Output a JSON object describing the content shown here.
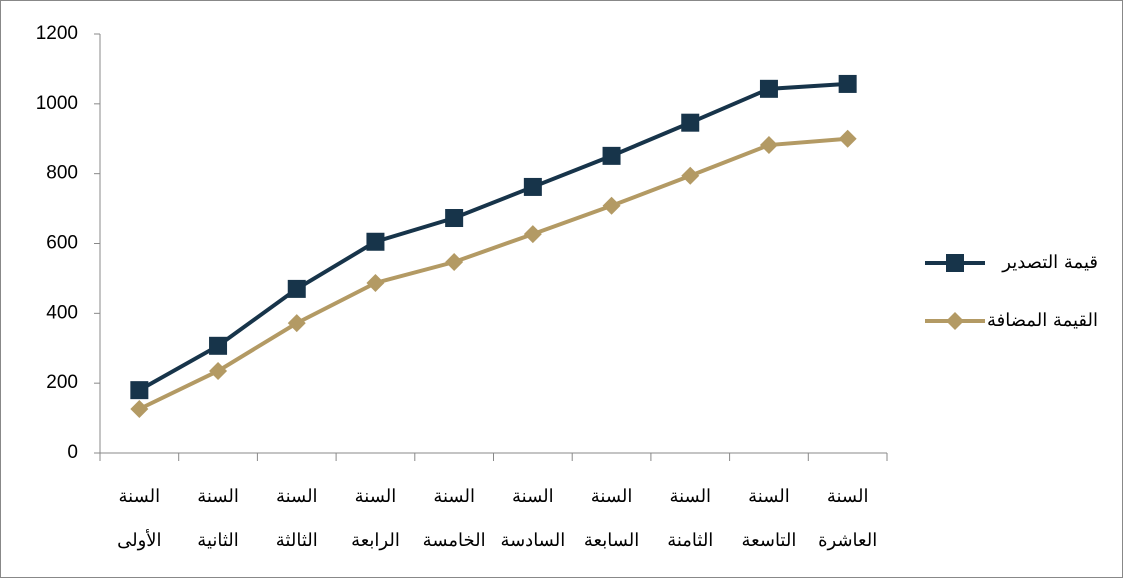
{
  "chart_data": {
    "type": "line",
    "categories": [
      "السنة الأولى",
      "السنة الثانية",
      "السنة الثالثة",
      "السنة الرابعة",
      "السنة الخامسة",
      "السنة السادسة",
      "السنة السابعة",
      "السنة الثامنة",
      "السنة التاسعة",
      "السنة العاشرة"
    ],
    "series": [
      {
        "name": "قيمة التصدير",
        "color": "#17344a",
        "marker": "square",
        "values": [
          180,
          307,
          470,
          605,
          673,
          762,
          851,
          946,
          1043,
          1057
        ]
      },
      {
        "name": "القيمة المضافة",
        "color": "#b39a64",
        "marker": "diamond",
        "values": [
          126,
          235,
          372,
          487,
          547,
          627,
          708,
          794,
          882,
          900
        ]
      }
    ],
    "ylim": [
      0,
      1200
    ],
    "yticks": [
      0,
      200,
      400,
      600,
      800,
      1000,
      1200
    ],
    "legend": "right",
    "grid": false
  }
}
